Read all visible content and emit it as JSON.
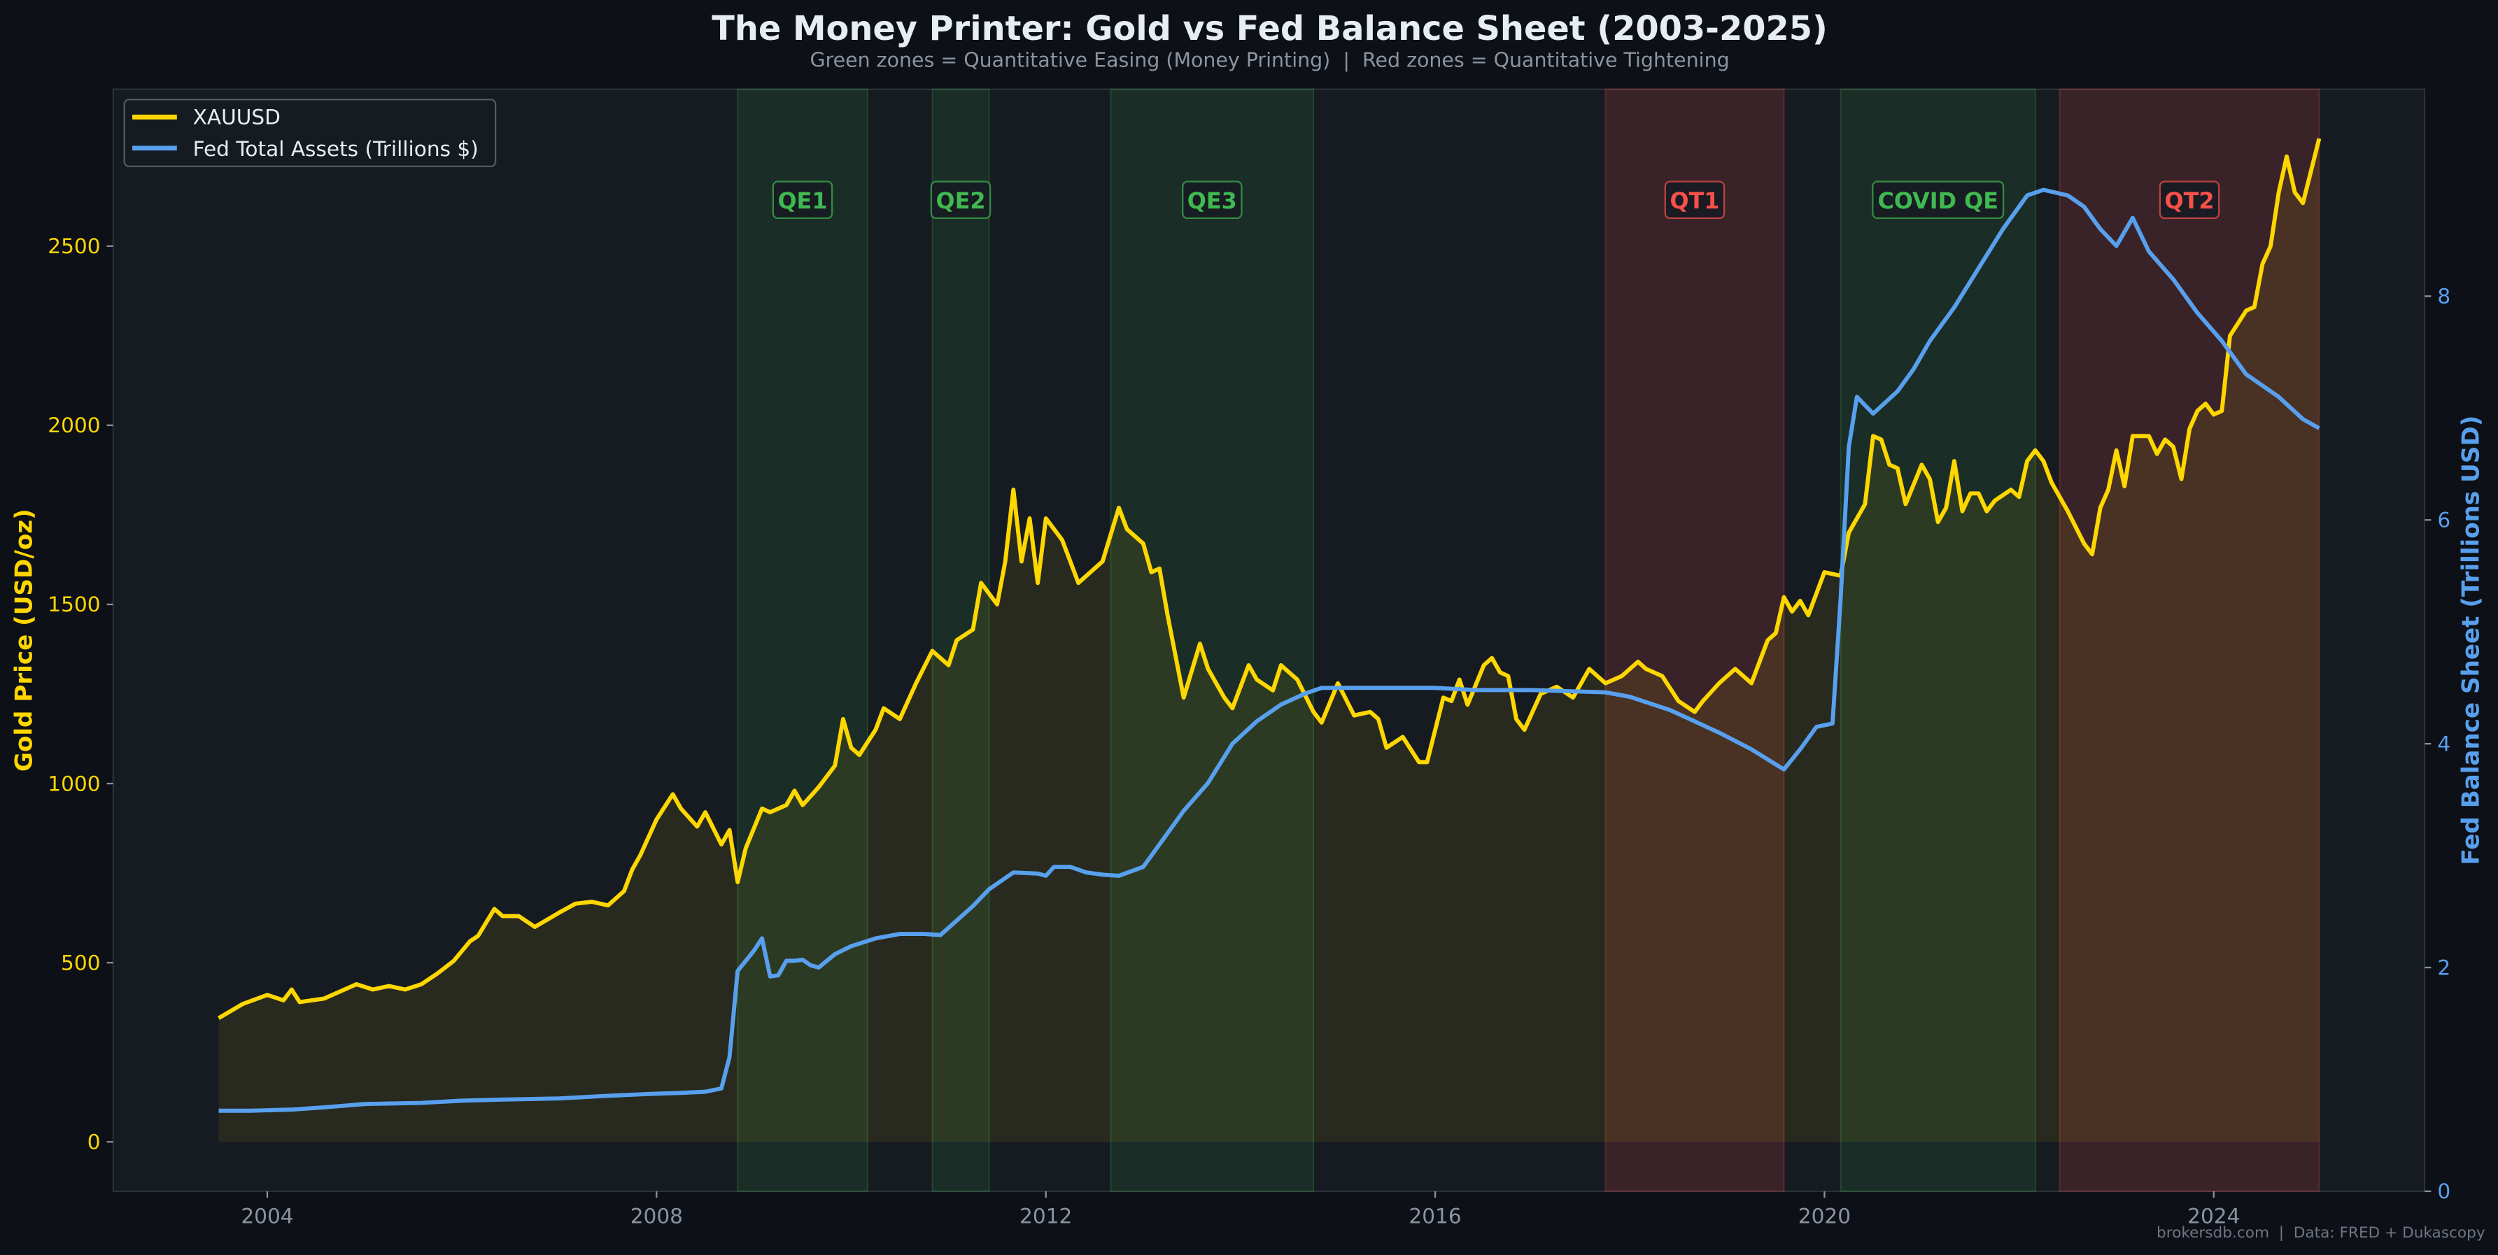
{
  "chart_data": {
    "type": "line",
    "title": "The Money Printer: Gold vs Fed Balance Sheet (2003-2025)",
    "subtitle": "Green zones = Quantitative Easing (Money Printing)  |  Red zones = Quantitative Tightening",
    "footer": "brokersdb.com  |  Data: FRED + Dukascopy",
    "ylabel_left": "Gold Price (USD/oz)",
    "ylabel_right": "Fed Balance Sheet (Trillions USD)",
    "xlim": [
      "2002-06",
      "2026-03"
    ],
    "ylim_left": [
      -138,
      2938
    ],
    "ylim_right": [
      0,
      9.85
    ],
    "x_ticks": [
      "2004",
      "2008",
      "2012",
      "2016",
      "2020",
      "2024"
    ],
    "y_ticks_left": [
      "0",
      "500",
      "1000",
      "1500",
      "2000",
      "2500"
    ],
    "y_ticks_right": [
      "0",
      "2",
      "4",
      "6",
      "8"
    ],
    "grid": false,
    "legend_position": "top-left",
    "colors": {
      "background": "#0d1017",
      "plot_background": "#161b22",
      "gold": "#ffd700",
      "fed": "#58a0ee",
      "qe": "#3fb950",
      "qt": "#f85149",
      "tick": "#8b949e"
    },
    "zones": [
      {
        "label": "QE1",
        "kind": "qe",
        "start": "2008-11",
        "end": "2010-03"
      },
      {
        "label": "QE2",
        "kind": "qe",
        "start": "2010-11",
        "end": "2011-06"
      },
      {
        "label": "QE3",
        "kind": "qe",
        "start": "2012-09",
        "end": "2014-10"
      },
      {
        "label": "QT1",
        "kind": "qt",
        "start": "2017-10",
        "end": "2019-08"
      },
      {
        "label": "COVID QE",
        "kind": "qe",
        "start": "2020-03",
        "end": "2022-03"
      },
      {
        "label": "QT2",
        "kind": "qt",
        "start": "2022-06",
        "end": "2025-02"
      }
    ],
    "series": [
      {
        "name": "XAUUSD",
        "axis": "left",
        "points": [
          [
            "2003-07",
            345
          ],
          [
            "2003-10",
            385
          ],
          [
            "2004-01",
            410
          ],
          [
            "2004-03",
            395
          ],
          [
            "2004-04",
            425
          ],
          [
            "2004-05",
            390
          ],
          [
            "2004-08",
            400
          ],
          [
            "2004-12",
            440
          ],
          [
            "2005-02",
            425
          ],
          [
            "2005-04",
            435
          ],
          [
            "2005-06",
            425
          ],
          [
            "2005-08",
            440
          ],
          [
            "2005-10",
            470
          ],
          [
            "2005-12",
            505
          ],
          [
            "2006-02",
            560
          ],
          [
            "2006-03",
            575
          ],
          [
            "2006-05",
            650
          ],
          [
            "2006-06",
            630
          ],
          [
            "2006-08",
            630
          ],
          [
            "2006-10",
            600
          ],
          [
            "2007-01",
            640
          ],
          [
            "2007-03",
            665
          ],
          [
            "2007-05",
            670
          ],
          [
            "2007-07",
            660
          ],
          [
            "2007-09",
            700
          ],
          [
            "2007-10",
            760
          ],
          [
            "2007-11",
            800
          ],
          [
            "2008-01",
            900
          ],
          [
            "2008-03",
            970
          ],
          [
            "2008-04",
            930
          ],
          [
            "2008-06",
            880
          ],
          [
            "2008-07",
            920
          ],
          [
            "2008-09",
            830
          ],
          [
            "2008-10",
            870
          ],
          [
            "2008-11",
            725
          ],
          [
            "2008-12",
            820
          ],
          [
            "2009-02",
            930
          ],
          [
            "2009-03",
            920
          ],
          [
            "2009-05",
            940
          ],
          [
            "2009-06",
            980
          ],
          [
            "2009-07",
            940
          ],
          [
            "2009-09",
            990
          ],
          [
            "2009-11",
            1050
          ],
          [
            "2009-12",
            1180
          ],
          [
            "2010-01",
            1100
          ],
          [
            "2010-02",
            1080
          ],
          [
            "2010-04",
            1150
          ],
          [
            "2010-05",
            1210
          ],
          [
            "2010-07",
            1180
          ],
          [
            "2010-09",
            1280
          ],
          [
            "2010-11",
            1370
          ],
          [
            "2011-01",
            1330
          ],
          [
            "2011-02",
            1400
          ],
          [
            "2011-04",
            1430
          ],
          [
            "2011-05",
            1560
          ],
          [
            "2011-07",
            1500
          ],
          [
            "2011-08",
            1620
          ],
          [
            "2011-09",
            1820
          ],
          [
            "2011-10",
            1620
          ],
          [
            "2011-11",
            1740
          ],
          [
            "2011-12",
            1560
          ],
          [
            "2012-01",
            1740
          ],
          [
            "2012-03",
            1680
          ],
          [
            "2012-05",
            1560
          ],
          [
            "2012-07",
            1600
          ],
          [
            "2012-08",
            1620
          ],
          [
            "2012-10",
            1770
          ],
          [
            "2012-11",
            1710
          ],
          [
            "2013-01",
            1670
          ],
          [
            "2013-02",
            1590
          ],
          [
            "2013-03",
            1600
          ],
          [
            "2013-04",
            1470
          ],
          [
            "2013-06",
            1240
          ],
          [
            "2013-08",
            1390
          ],
          [
            "2013-09",
            1320
          ],
          [
            "2013-11",
            1240
          ],
          [
            "2013-12",
            1210
          ],
          [
            "2014-02",
            1330
          ],
          [
            "2014-03",
            1290
          ],
          [
            "2014-05",
            1260
          ],
          [
            "2014-06",
            1330
          ],
          [
            "2014-08",
            1290
          ],
          [
            "2014-10",
            1200
          ],
          [
            "2014-11",
            1170
          ],
          [
            "2015-01",
            1280
          ],
          [
            "2015-03",
            1190
          ],
          [
            "2015-05",
            1200
          ],
          [
            "2015-06",
            1180
          ],
          [
            "2015-07",
            1100
          ],
          [
            "2015-09",
            1130
          ],
          [
            "2015-11",
            1060
          ],
          [
            "2015-12",
            1060
          ],
          [
            "2016-02",
            1240
          ],
          [
            "2016-03",
            1230
          ],
          [
            "2016-04",
            1290
          ],
          [
            "2016-05",
            1220
          ],
          [
            "2016-07",
            1330
          ],
          [
            "2016-08",
            1350
          ],
          [
            "2016-09",
            1310
          ],
          [
            "2016-10",
            1300
          ],
          [
            "2016-11",
            1180
          ],
          [
            "2016-12",
            1150
          ],
          [
            "2017-02",
            1250
          ],
          [
            "2017-04",
            1270
          ],
          [
            "2017-06",
            1240
          ],
          [
            "2017-08",
            1320
          ],
          [
            "2017-10",
            1280
          ],
          [
            "2017-12",
            1300
          ],
          [
            "2018-02",
            1340
          ],
          [
            "2018-03",
            1320
          ],
          [
            "2018-05",
            1300
          ],
          [
            "2018-07",
            1230
          ],
          [
            "2018-09",
            1200
          ],
          [
            "2018-10",
            1230
          ],
          [
            "2018-12",
            1280
          ],
          [
            "2019-02",
            1320
          ],
          [
            "2019-04",
            1280
          ],
          [
            "2019-06",
            1400
          ],
          [
            "2019-07",
            1420
          ],
          [
            "2019-08",
            1520
          ],
          [
            "2019-09",
            1480
          ],
          [
            "2019-10",
            1510
          ],
          [
            "2019-11",
            1470
          ],
          [
            "2020-01",
            1590
          ],
          [
            "2020-03",
            1580
          ],
          [
            "2020-04",
            1700
          ],
          [
            "2020-06",
            1780
          ],
          [
            "2020-07",
            1970
          ],
          [
            "2020-08",
            1960
          ],
          [
            "2020-09",
            1890
          ],
          [
            "2020-10",
            1880
          ],
          [
            "2020-11",
            1780
          ],
          [
            "2021-01",
            1890
          ],
          [
            "2021-02",
            1850
          ],
          [
            "2021-03",
            1730
          ],
          [
            "2021-04",
            1770
          ],
          [
            "2021-05",
            1900
          ],
          [
            "2021-06",
            1760
          ],
          [
            "2021-07",
            1810
          ],
          [
            "2021-08",
            1810
          ],
          [
            "2021-09",
            1760
          ],
          [
            "2021-10",
            1790
          ],
          [
            "2021-12",
            1820
          ],
          [
            "2022-01",
            1800
          ],
          [
            "2022-02",
            1900
          ],
          [
            "2022-03",
            1930
          ],
          [
            "2022-04",
            1900
          ],
          [
            "2022-05",
            1840
          ],
          [
            "2022-07",
            1760
          ],
          [
            "2022-09",
            1670
          ],
          [
            "2022-10",
            1640
          ],
          [
            "2022-11",
            1770
          ],
          [
            "2022-12",
            1820
          ],
          [
            "2023-01",
            1930
          ],
          [
            "2023-02",
            1830
          ],
          [
            "2023-03",
            1970
          ],
          [
            "2023-05",
            1970
          ],
          [
            "2023-06",
            1920
          ],
          [
            "2023-07",
            1960
          ],
          [
            "2023-08",
            1940
          ],
          [
            "2023-09",
            1850
          ],
          [
            "2023-10",
            1990
          ],
          [
            "2023-11",
            2040
          ],
          [
            "2023-12",
            2060
          ],
          [
            "2024-01",
            2030
          ],
          [
            "2024-02",
            2040
          ],
          [
            "2024-03",
            2250
          ],
          [
            "2024-05",
            2320
          ],
          [
            "2024-06",
            2330
          ],
          [
            "2024-07",
            2450
          ],
          [
            "2024-08",
            2500
          ],
          [
            "2024-09",
            2650
          ],
          [
            "2024-10",
            2750
          ],
          [
            "2024-11",
            2650
          ],
          [
            "2024-12",
            2620
          ],
          [
            "2025-02",
            2800
          ]
        ]
      },
      {
        "name": "Fed Total Assets (Trillions $)",
        "axis": "right",
        "points": [
          [
            "2003-07",
            0.72
          ],
          [
            "2003-11",
            0.72
          ],
          [
            "2004-04",
            0.73
          ],
          [
            "2004-08",
            0.75
          ],
          [
            "2005-01",
            0.78
          ],
          [
            "2005-08",
            0.79
          ],
          [
            "2006-01",
            0.81
          ],
          [
            "2006-06",
            0.82
          ],
          [
            "2007-01",
            0.83
          ],
          [
            "2007-06",
            0.85
          ],
          [
            "2007-12",
            0.87
          ],
          [
            "2008-04",
            0.88
          ],
          [
            "2008-07",
            0.89
          ],
          [
            "2008-09",
            0.92
          ],
          [
            "2008-10",
            1.2
          ],
          [
            "2008-11",
            1.97
          ],
          [
            "2009-01",
            2.15
          ],
          [
            "2009-02",
            2.26
          ],
          [
            "2009-03",
            1.92
          ],
          [
            "2009-04",
            1.93
          ],
          [
            "2009-05",
            2.06
          ],
          [
            "2009-06",
            2.06
          ],
          [
            "2009-07",
            2.07
          ],
          [
            "2009-08",
            2.02
          ],
          [
            "2009-09",
            2.0
          ],
          [
            "2009-11",
            2.12
          ],
          [
            "2010-01",
            2.19
          ],
          [
            "2010-04",
            2.26
          ],
          [
            "2010-07",
            2.3
          ],
          [
            "2010-10",
            2.3
          ],
          [
            "2010-12",
            2.29
          ],
          [
            "2011-02",
            2.42
          ],
          [
            "2011-04",
            2.55
          ],
          [
            "2011-06",
            2.7
          ],
          [
            "2011-09",
            2.85
          ],
          [
            "2011-12",
            2.84
          ],
          [
            "2012-01",
            2.82
          ],
          [
            "2012-02",
            2.9
          ],
          [
            "2012-04",
            2.9
          ],
          [
            "2012-06",
            2.85
          ],
          [
            "2012-08",
            2.83
          ],
          [
            "2012-10",
            2.82
          ],
          [
            "2013-01",
            2.9
          ],
          [
            "2013-03",
            3.1
          ],
          [
            "2013-06",
            3.4
          ],
          [
            "2013-09",
            3.65
          ],
          [
            "2013-12",
            4.0
          ],
          [
            "2014-03",
            4.2
          ],
          [
            "2014-06",
            4.35
          ],
          [
            "2014-09",
            4.45
          ],
          [
            "2014-11",
            4.5
          ],
          [
            "2015-06",
            4.5
          ],
          [
            "2016-01",
            4.5
          ],
          [
            "2016-06",
            4.48
          ],
          [
            "2017-01",
            4.48
          ],
          [
            "2017-10",
            4.46
          ],
          [
            "2018-01",
            4.42
          ],
          [
            "2018-06",
            4.3
          ],
          [
            "2018-12",
            4.1
          ],
          [
            "2019-04",
            3.95
          ],
          [
            "2019-08",
            3.77
          ],
          [
            "2019-10",
            3.95
          ],
          [
            "2019-12",
            4.15
          ],
          [
            "2020-02",
            4.18
          ],
          [
            "2020-03",
            5.3
          ],
          [
            "2020-04",
            6.65
          ],
          [
            "2020-05",
            7.1
          ],
          [
            "2020-07",
            6.95
          ],
          [
            "2020-10",
            7.15
          ],
          [
            "2020-12",
            7.35
          ],
          [
            "2021-02",
            7.6
          ],
          [
            "2021-05",
            7.9
          ],
          [
            "2021-08",
            8.25
          ],
          [
            "2021-11",
            8.6
          ],
          [
            "2022-02",
            8.9
          ],
          [
            "2022-04",
            8.95
          ],
          [
            "2022-07",
            8.9
          ],
          [
            "2022-09",
            8.8
          ],
          [
            "2022-11",
            8.6
          ],
          [
            "2023-01",
            8.45
          ],
          [
            "2023-03",
            8.7
          ],
          [
            "2023-05",
            8.4
          ],
          [
            "2023-08",
            8.15
          ],
          [
            "2023-11",
            7.85
          ],
          [
            "2024-02",
            7.6
          ],
          [
            "2024-05",
            7.3
          ],
          [
            "2024-09",
            7.1
          ],
          [
            "2024-12",
            6.9
          ],
          [
            "2025-02",
            6.82
          ]
        ]
      }
    ]
  }
}
